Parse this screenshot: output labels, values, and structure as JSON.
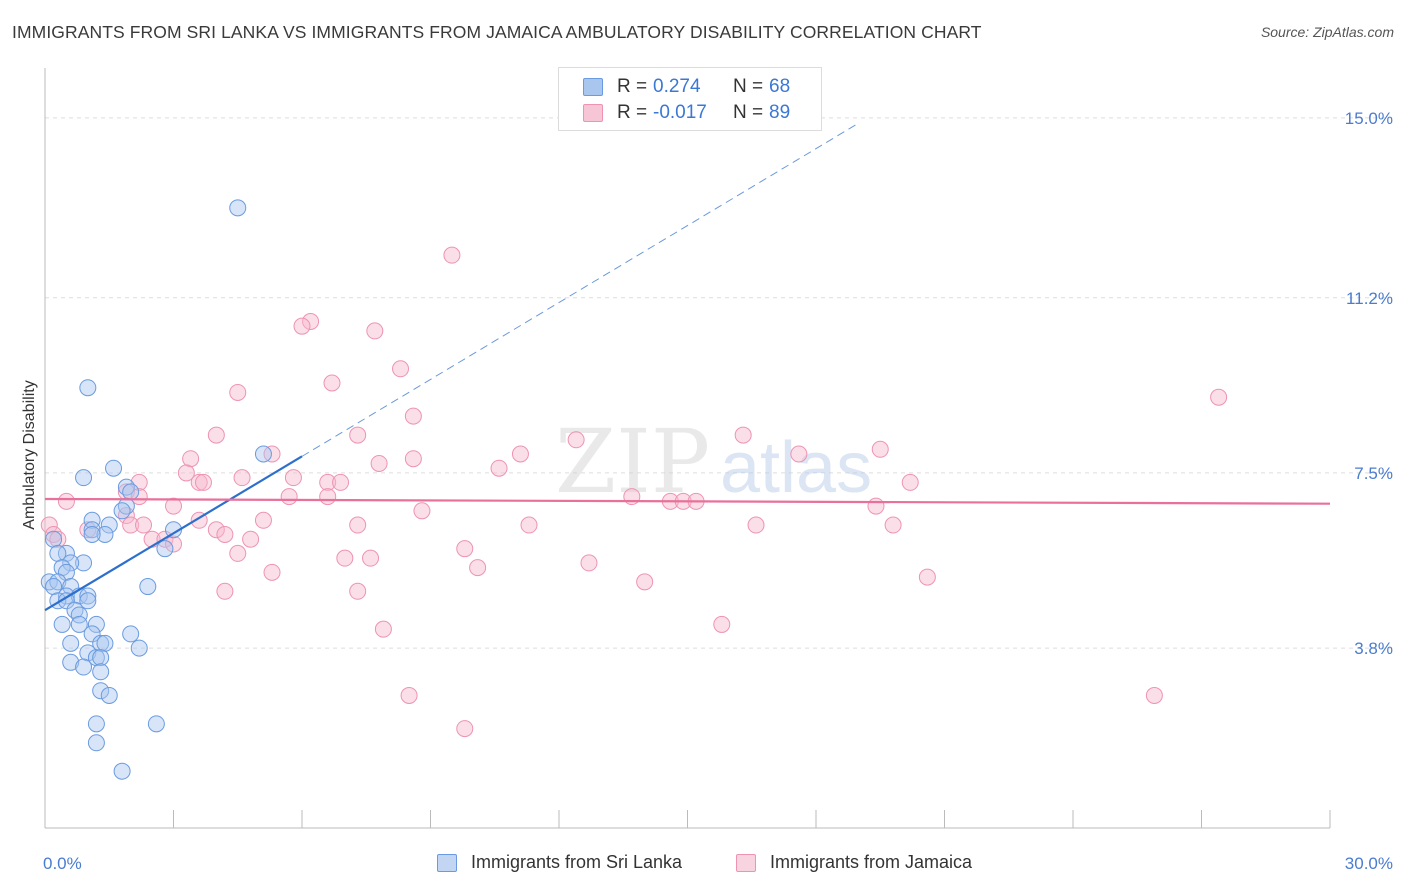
{
  "title": "IMMIGRANTS FROM SRI LANKA VS IMMIGRANTS FROM JAMAICA AMBULATORY DISABILITY CORRELATION CHART",
  "source": "Source: ZipAtlas.com",
  "watermark": {
    "zip": "ZIP",
    "atlas": "atlas"
  },
  "legend": {
    "series": [
      {
        "r_label": "R =",
        "r_value": "0.274",
        "n_label": "N =",
        "n_value": "68"
      },
      {
        "r_label": "R =",
        "r_value": "-0.017",
        "n_label": "N =",
        "n_value": "89"
      }
    ]
  },
  "colors": {
    "blue_fill": "#a9c6ef",
    "blue_stroke": "#6a9be0",
    "blue_line": "#2d6fcc",
    "pink_fill": "#f6b8cd",
    "pink_stroke": "#ee93b3",
    "pink_line": "#e8709b",
    "grid": "#dddddd",
    "tick_text": "#4a7ccf"
  },
  "chart_data": {
    "type": "scatter",
    "title": "IMMIGRANTS FROM SRI LANKA VS IMMIGRANTS FROM JAMAICA AMBULATORY DISABILITY CORRELATION CHART",
    "xlabel": "",
    "ylabel": "Ambulatory Disability",
    "xlim": [
      0,
      30
    ],
    "ylim": [
      0,
      15.8
    ],
    "x_tick_labels": [
      "0.0%",
      "30.0%"
    ],
    "y_ticks": [
      3.8,
      7.5,
      11.2,
      15.0
    ],
    "y_tick_labels": [
      "3.8%",
      "7.5%",
      "11.2%",
      "15.0%"
    ],
    "grid": true,
    "legend_position": "top-center",
    "series": [
      {
        "name": "Immigrants from Sri Lanka",
        "color": "blue",
        "r": 0.274,
        "n": 68,
        "trend": {
          "x0": 0.0,
          "y0": 4.6,
          "x1": 6.0,
          "y1": 7.85,
          "dashed_to_x": 19.0
        },
        "points": [
          [
            4.5,
            13.1
          ],
          [
            1.0,
            9.3
          ],
          [
            5.1,
            7.9
          ],
          [
            1.6,
            7.6
          ],
          [
            0.9,
            7.4
          ],
          [
            1.9,
            7.2
          ],
          [
            2.0,
            7.1
          ],
          [
            1.9,
            6.8
          ],
          [
            1.8,
            6.7
          ],
          [
            1.1,
            6.5
          ],
          [
            1.1,
            6.3
          ],
          [
            1.5,
            6.4
          ],
          [
            3.0,
            6.3
          ],
          [
            1.4,
            6.2
          ],
          [
            1.1,
            6.2
          ],
          [
            0.2,
            6.1
          ],
          [
            2.8,
            5.9
          ],
          [
            0.5,
            5.8
          ],
          [
            0.3,
            5.8
          ],
          [
            0.9,
            5.6
          ],
          [
            0.6,
            5.6
          ],
          [
            0.4,
            5.5
          ],
          [
            0.5,
            5.4
          ],
          [
            0.1,
            5.2
          ],
          [
            0.3,
            5.2
          ],
          [
            0.6,
            5.1
          ],
          [
            0.2,
            5.1
          ],
          [
            2.4,
            5.1
          ],
          [
            0.5,
            4.9
          ],
          [
            0.8,
            4.9
          ],
          [
            1.0,
            4.9
          ],
          [
            0.3,
            4.8
          ],
          [
            0.5,
            4.8
          ],
          [
            1.0,
            4.8
          ],
          [
            0.7,
            4.6
          ],
          [
            0.8,
            4.5
          ],
          [
            0.8,
            4.3
          ],
          [
            1.2,
            4.3
          ],
          [
            0.4,
            4.3
          ],
          [
            1.1,
            4.1
          ],
          [
            2.0,
            4.1
          ],
          [
            1.3,
            3.9
          ],
          [
            0.6,
            3.9
          ],
          [
            1.4,
            3.9
          ],
          [
            2.2,
            3.8
          ],
          [
            1.0,
            3.7
          ],
          [
            1.2,
            3.6
          ],
          [
            1.3,
            3.6
          ],
          [
            0.6,
            3.5
          ],
          [
            0.9,
            3.4
          ],
          [
            1.3,
            3.3
          ],
          [
            1.3,
            2.9
          ],
          [
            1.5,
            2.8
          ],
          [
            1.2,
            2.2
          ],
          [
            2.6,
            2.2
          ],
          [
            1.2,
            1.8
          ],
          [
            1.8,
            1.2
          ]
        ]
      },
      {
        "name": "Immigrants from Jamaica",
        "color": "pink",
        "r": -0.017,
        "n": 89,
        "trend": {
          "x0": 0.0,
          "y0": 6.95,
          "x1": 30.0,
          "y1": 6.85
        },
        "points": [
          [
            9.5,
            12.1
          ],
          [
            6.2,
            10.7
          ],
          [
            6.0,
            10.6
          ],
          [
            7.7,
            10.5
          ],
          [
            8.3,
            9.7
          ],
          [
            6.7,
            9.4
          ],
          [
            4.5,
            9.2
          ],
          [
            27.4,
            9.1
          ],
          [
            8.6,
            8.7
          ],
          [
            7.3,
            8.3
          ],
          [
            16.3,
            8.3
          ],
          [
            4.0,
            8.3
          ],
          [
            12.4,
            8.2
          ],
          [
            5.3,
            7.9
          ],
          [
            19.5,
            8.0
          ],
          [
            11.1,
            7.9
          ],
          [
            17.6,
            7.9
          ],
          [
            3.4,
            7.8
          ],
          [
            8.6,
            7.8
          ],
          [
            7.8,
            7.7
          ],
          [
            10.6,
            7.6
          ],
          [
            3.3,
            7.5
          ],
          [
            4.6,
            7.4
          ],
          [
            5.8,
            7.4
          ],
          [
            3.6,
            7.3
          ],
          [
            6.6,
            7.3
          ],
          [
            6.9,
            7.3
          ],
          [
            2.2,
            7.3
          ],
          [
            3.7,
            7.3
          ],
          [
            20.2,
            7.3
          ],
          [
            1.9,
            7.1
          ],
          [
            2.2,
            7.0
          ],
          [
            5.7,
            7.0
          ],
          [
            6.6,
            7.0
          ],
          [
            13.7,
            7.0
          ],
          [
            14.6,
            6.9
          ],
          [
            14.9,
            6.9
          ],
          [
            15.2,
            6.9
          ],
          [
            0.5,
            6.9
          ],
          [
            3.0,
            6.8
          ],
          [
            8.8,
            6.7
          ],
          [
            19.4,
            6.8
          ],
          [
            1.9,
            6.6
          ],
          [
            3.6,
            6.5
          ],
          [
            5.1,
            6.5
          ],
          [
            7.3,
            6.4
          ],
          [
            11.3,
            6.4
          ],
          [
            2.0,
            6.4
          ],
          [
            16.6,
            6.4
          ],
          [
            2.3,
            6.4
          ],
          [
            0.1,
            6.4
          ],
          [
            19.8,
            6.4
          ],
          [
            1.0,
            6.3
          ],
          [
            4.0,
            6.3
          ],
          [
            4.2,
            6.2
          ],
          [
            0.2,
            6.2
          ],
          [
            4.8,
            6.1
          ],
          [
            2.5,
            6.1
          ],
          [
            2.8,
            6.1
          ],
          [
            0.3,
            6.1
          ],
          [
            9.8,
            5.9
          ],
          [
            3.0,
            6.0
          ],
          [
            4.5,
            5.8
          ],
          [
            7.0,
            5.7
          ],
          [
            7.6,
            5.7
          ],
          [
            12.7,
            5.6
          ],
          [
            10.1,
            5.5
          ],
          [
            5.3,
            5.4
          ],
          [
            20.6,
            5.3
          ],
          [
            14.0,
            5.2
          ],
          [
            4.2,
            5.0
          ],
          [
            7.3,
            5.0
          ],
          [
            15.8,
            4.3
          ],
          [
            7.9,
            4.2
          ],
          [
            8.5,
            2.8
          ],
          [
            25.9,
            2.8
          ],
          [
            9.8,
            2.1
          ]
        ]
      }
    ]
  },
  "bottom_legend": [
    {
      "label": "Immigrants from Sri Lanka"
    },
    {
      "label": "Immigrants from Jamaica"
    }
  ]
}
